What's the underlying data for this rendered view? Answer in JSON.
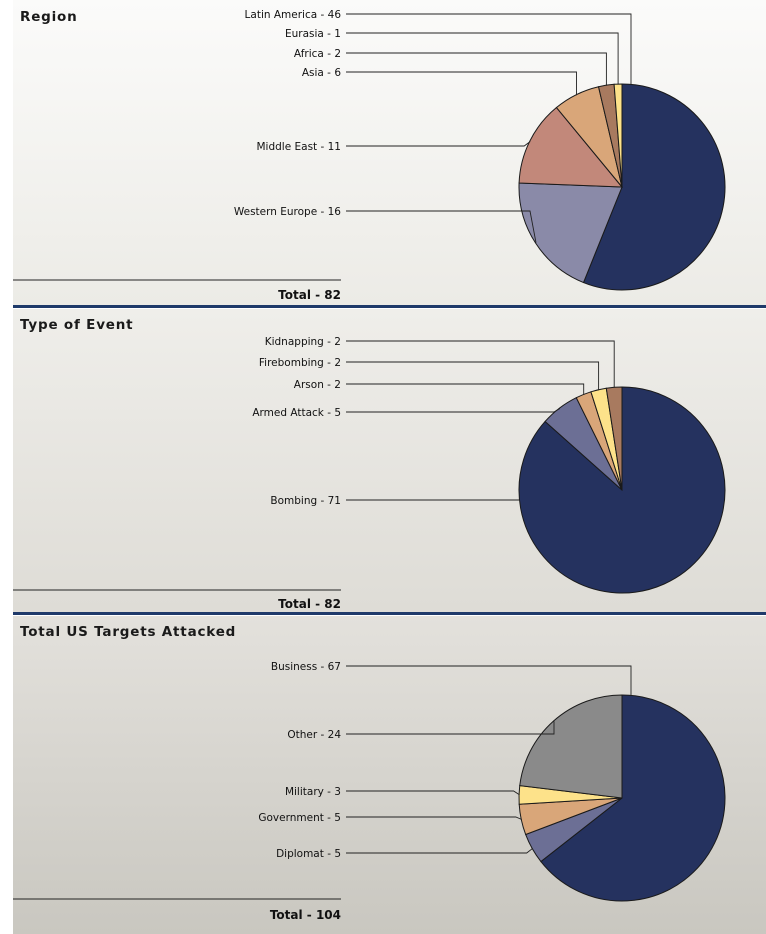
{
  "colors": {
    "navy": "#25325f",
    "lavender": "#8a8aa8",
    "slate": "#6c6f95",
    "salmon": "#c2887a",
    "tan": "#d9a679",
    "brown": "#a87a5f",
    "yellow": "#fde28a",
    "gray": "#8a8a8a",
    "divider": "#1f3a6a"
  },
  "chart_data": [
    {
      "type": "pie",
      "title": "Region",
      "total_label": "Total - 82",
      "slices": [
        {
          "label": "Latin America - 46",
          "name": "Latin America",
          "value": 46,
          "color": "#25325f"
        },
        {
          "label": "Western Europe - 16",
          "name": "Western Europe",
          "value": 16,
          "color": "#8a8aa8"
        },
        {
          "label": "Middle East - 11",
          "name": "Middle East",
          "value": 11,
          "color": "#c2887a"
        },
        {
          "label": "Asia - 6",
          "name": "Asia",
          "value": 6,
          "color": "#d9a679"
        },
        {
          "label": "Africa - 2",
          "name": "Africa",
          "value": 2,
          "color": "#a87a5f"
        },
        {
          "label": "Eurasia - 1",
          "name": "Eurasia",
          "value": 1,
          "color": "#fde28a"
        }
      ]
    },
    {
      "type": "pie",
      "title": "Type of Event",
      "total_label": "Total - 82",
      "slices": [
        {
          "label": "Bombing - 71",
          "name": "Bombing",
          "value": 71,
          "color": "#25325f"
        },
        {
          "label": "Armed Attack - 5",
          "name": "Armed Attack",
          "value": 5,
          "color": "#6c6f95"
        },
        {
          "label": "Arson - 2",
          "name": "Arson",
          "value": 2,
          "color": "#d9a679"
        },
        {
          "label": "Firebombing - 2",
          "name": "Firebombing",
          "value": 2,
          "color": "#fde28a"
        },
        {
          "label": "Kidnapping - 2",
          "name": "Kidnapping",
          "value": 2,
          "color": "#a87a5f"
        }
      ]
    },
    {
      "type": "pie",
      "title": "Total US Targets Attacked",
      "total_label": "Total - 104",
      "slices": [
        {
          "label": "Business - 67",
          "name": "Business",
          "value": 67,
          "color": "#25325f"
        },
        {
          "label": "Diplomat - 5",
          "name": "Diplomat",
          "value": 5,
          "color": "#6c6f95"
        },
        {
          "label": "Government - 5",
          "name": "Government",
          "value": 5,
          "color": "#d9a679"
        },
        {
          "label": "Military - 3",
          "name": "Military",
          "value": 3,
          "color": "#fde28a"
        },
        {
          "label": "Other - 24",
          "name": "Other",
          "value": 24,
          "color": "#8a8a8a"
        }
      ]
    }
  ]
}
